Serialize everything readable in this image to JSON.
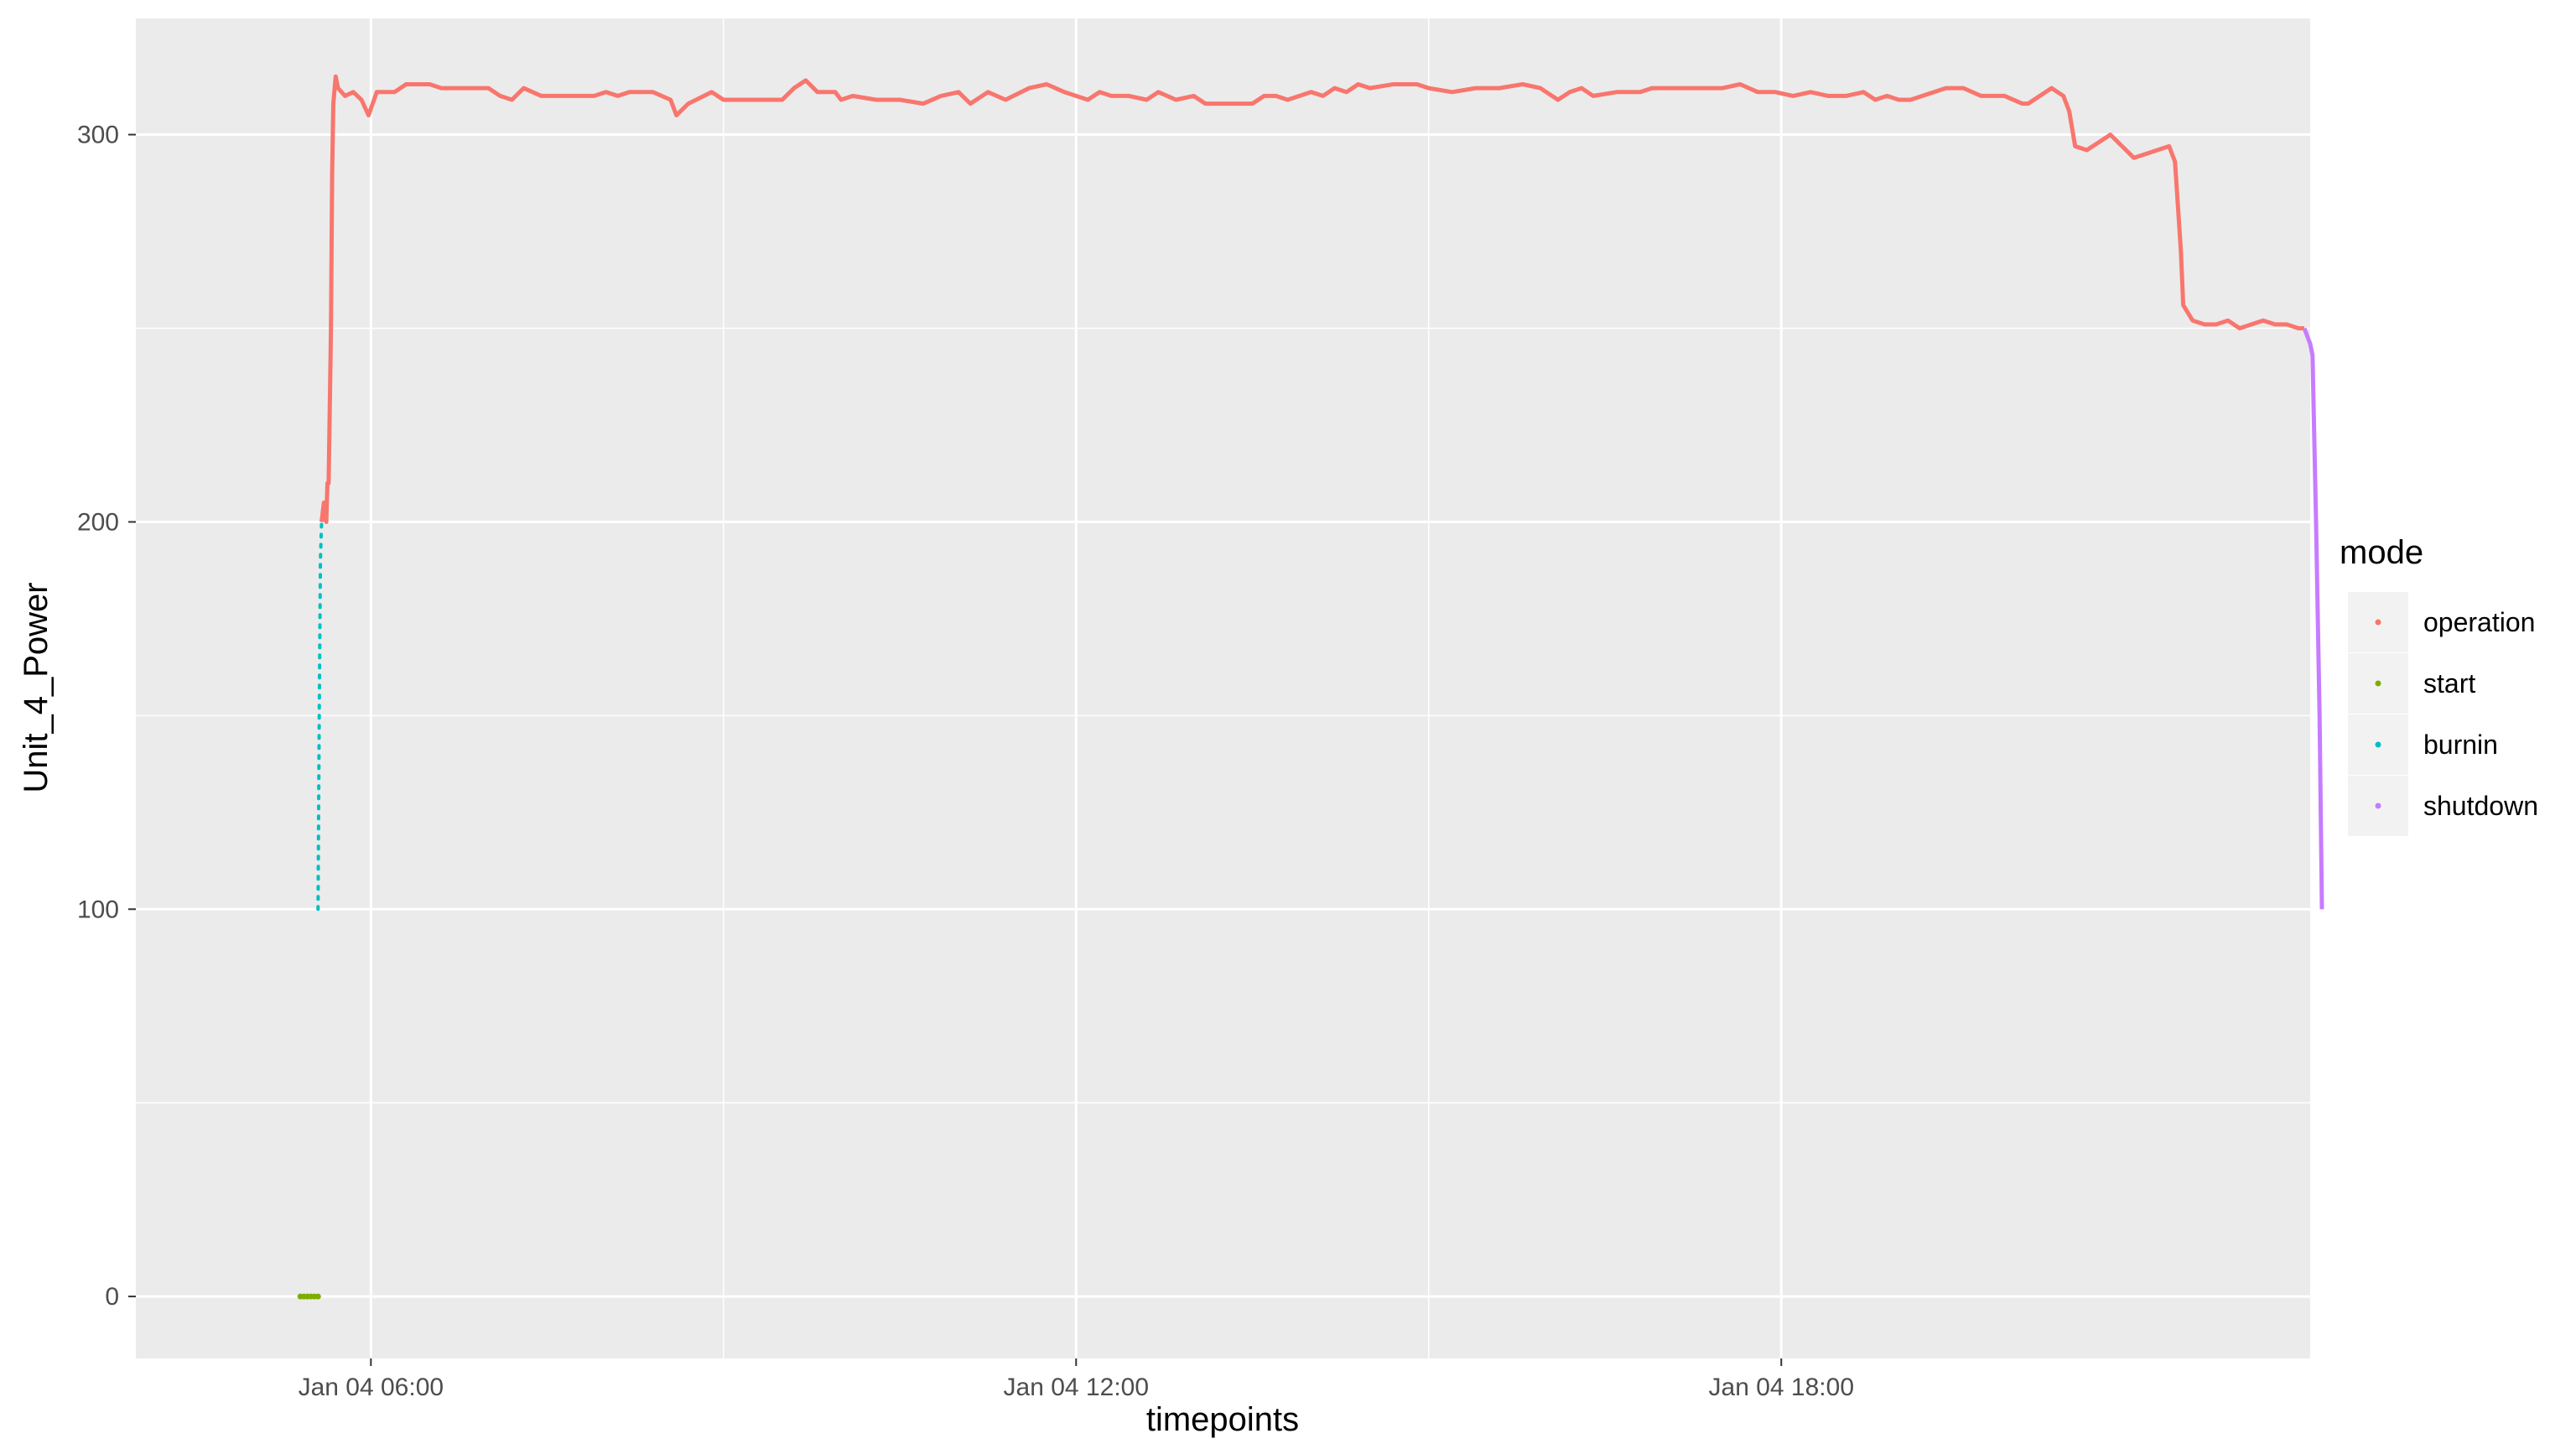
{
  "chart_data": {
    "type": "line",
    "title": "",
    "xlabel": "timepoints",
    "ylabel": "Unit_4_Power",
    "x_ticks": [
      {
        "value": 6,
        "label": "Jan 04 06:00"
      },
      {
        "value": 12,
        "label": "Jan 04 12:00"
      },
      {
        "value": 18,
        "label": "Jan 04 18:00"
      }
    ],
    "y_ticks": [
      0,
      100,
      200,
      300
    ],
    "xlim": [
      4.0,
      22.5
    ],
    "ylim": [
      -16,
      330
    ],
    "grid": true,
    "legend": {
      "title": "mode",
      "position": "right"
    },
    "series": [
      {
        "name": "start",
        "color": "#7CAE00",
        "style": "points",
        "points": [
          [
            5.4,
            0
          ],
          [
            5.43,
            0
          ],
          [
            5.46,
            0
          ],
          [
            5.49,
            0
          ],
          [
            5.52,
            0
          ],
          [
            5.55,
            0
          ]
        ]
      },
      {
        "name": "burnin",
        "color": "#00BFC4",
        "style": "dotted",
        "points": [
          [
            5.55,
            100
          ],
          [
            5.56,
            150
          ],
          [
            5.57,
            190
          ],
          [
            5.58,
            200
          ]
        ]
      },
      {
        "name": "operation",
        "color": "#F8766D",
        "style": "line",
        "points": [
          [
            5.58,
            200
          ],
          [
            5.6,
            205
          ],
          [
            5.62,
            200
          ],
          [
            5.63,
            210
          ],
          [
            5.64,
            210
          ],
          [
            5.66,
            250
          ],
          [
            5.67,
            290
          ],
          [
            5.68,
            308
          ],
          [
            5.7,
            315
          ],
          [
            5.72,
            312
          ],
          [
            5.78,
            310
          ],
          [
            5.85,
            311
          ],
          [
            5.92,
            309
          ],
          [
            5.98,
            305
          ],
          [
            6.05,
            311
          ],
          [
            6.2,
            311
          ],
          [
            6.3,
            313
          ],
          [
            6.5,
            313
          ],
          [
            6.6,
            312
          ],
          [
            7.0,
            312
          ],
          [
            7.1,
            310
          ],
          [
            7.2,
            309
          ],
          [
            7.3,
            312
          ],
          [
            7.45,
            310
          ],
          [
            7.7,
            310
          ],
          [
            7.9,
            310
          ],
          [
            8.0,
            311
          ],
          [
            8.1,
            310
          ],
          [
            8.2,
            311
          ],
          [
            8.4,
            311
          ],
          [
            8.55,
            309
          ],
          [
            8.6,
            305
          ],
          [
            8.7,
            308
          ],
          [
            8.9,
            311
          ],
          [
            9.0,
            309
          ],
          [
            9.3,
            309
          ],
          [
            9.5,
            309
          ],
          [
            9.6,
            312
          ],
          [
            9.7,
            314
          ],
          [
            9.8,
            311
          ],
          [
            9.95,
            311
          ],
          [
            10.0,
            309
          ],
          [
            10.1,
            310
          ],
          [
            10.3,
            309
          ],
          [
            10.5,
            309
          ],
          [
            10.7,
            308
          ],
          [
            10.85,
            310
          ],
          [
            11.0,
            311
          ],
          [
            11.1,
            308
          ],
          [
            11.25,
            311
          ],
          [
            11.4,
            309
          ],
          [
            11.6,
            312
          ],
          [
            11.75,
            313
          ],
          [
            11.9,
            311
          ],
          [
            12.0,
            310
          ],
          [
            12.1,
            309
          ],
          [
            12.2,
            311
          ],
          [
            12.3,
            310
          ],
          [
            12.45,
            310
          ],
          [
            12.6,
            309
          ],
          [
            12.7,
            311
          ],
          [
            12.85,
            309
          ],
          [
            13.0,
            310
          ],
          [
            13.1,
            308
          ],
          [
            13.3,
            308
          ],
          [
            13.5,
            308
          ],
          [
            13.6,
            310
          ],
          [
            13.7,
            310
          ],
          [
            13.8,
            309
          ],
          [
            14.0,
            311
          ],
          [
            14.1,
            310
          ],
          [
            14.2,
            312
          ],
          [
            14.3,
            311
          ],
          [
            14.4,
            313
          ],
          [
            14.5,
            312
          ],
          [
            14.7,
            313
          ],
          [
            14.9,
            313
          ],
          [
            15.0,
            312
          ],
          [
            15.2,
            311
          ],
          [
            15.4,
            312
          ],
          [
            15.6,
            312
          ],
          [
            15.8,
            313
          ],
          [
            15.95,
            312
          ],
          [
            16.05,
            310
          ],
          [
            16.1,
            309
          ],
          [
            16.2,
            311
          ],
          [
            16.3,
            312
          ],
          [
            16.4,
            310
          ],
          [
            16.6,
            311
          ],
          [
            16.8,
            311
          ],
          [
            16.9,
            312
          ],
          [
            17.1,
            312
          ],
          [
            17.3,
            312
          ],
          [
            17.5,
            312
          ],
          [
            17.65,
            313
          ],
          [
            17.8,
            311
          ],
          [
            17.95,
            311
          ],
          [
            18.1,
            310
          ],
          [
            18.25,
            311
          ],
          [
            18.4,
            310
          ],
          [
            18.55,
            310
          ],
          [
            18.7,
            311
          ],
          [
            18.8,
            309
          ],
          [
            18.9,
            310
          ],
          [
            19.0,
            309
          ],
          [
            19.1,
            309
          ],
          [
            19.2,
            310
          ],
          [
            19.4,
            312
          ],
          [
            19.55,
            312
          ],
          [
            19.7,
            310
          ],
          [
            19.9,
            310
          ],
          [
            20.05,
            308
          ],
          [
            20.1,
            308
          ],
          [
            20.2,
            310
          ],
          [
            20.3,
            312
          ],
          [
            20.4,
            310
          ],
          [
            20.45,
            306
          ],
          [
            20.5,
            297
          ],
          [
            20.6,
            296
          ],
          [
            20.7,
            298
          ],
          [
            20.8,
            300
          ],
          [
            20.9,
            297
          ],
          [
            21.0,
            294
          ],
          [
            21.1,
            295
          ],
          [
            21.2,
            296
          ],
          [
            21.3,
            297
          ],
          [
            21.35,
            293
          ],
          [
            21.4,
            270
          ],
          [
            21.42,
            256
          ],
          [
            21.5,
            252
          ],
          [
            21.6,
            251
          ],
          [
            21.7,
            251
          ],
          [
            21.8,
            252
          ],
          [
            21.9,
            250
          ],
          [
            22.0,
            251
          ],
          [
            22.1,
            252
          ],
          [
            22.2,
            251
          ],
          [
            22.3,
            251
          ],
          [
            22.4,
            250
          ],
          [
            22.45,
            250
          ]
        ]
      },
      {
        "name": "shutdown",
        "color": "#C77CFF",
        "style": "line",
        "points": [
          [
            22.45,
            250
          ],
          [
            22.5,
            246
          ],
          [
            22.52,
            243
          ],
          [
            22.55,
            200
          ],
          [
            22.58,
            150
          ],
          [
            22.6,
            100
          ]
        ]
      }
    ]
  }
}
